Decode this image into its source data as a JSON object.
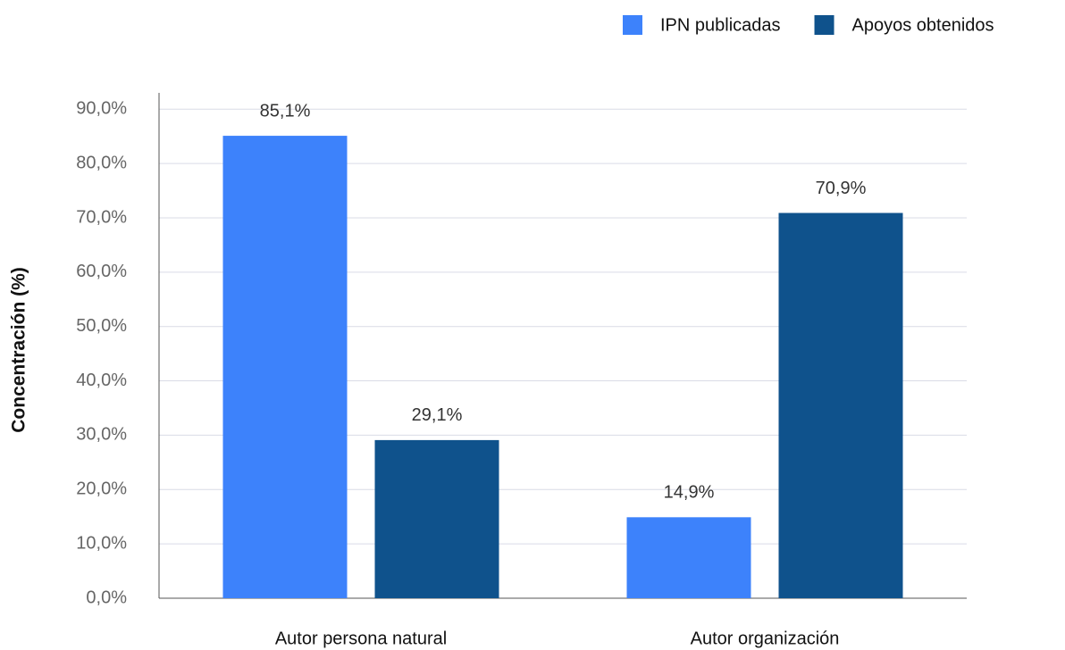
{
  "chart_data": {
    "type": "bar",
    "y_label": "Concentración (%)",
    "categories": [
      "Autor persona natural",
      "Autor organización"
    ],
    "series": [
      {
        "name": "IPN publicadas",
        "color": "#3d82fb",
        "values": [
          85.1,
          14.9
        ],
        "value_labels": [
          "85,1%",
          "14,9%"
        ]
      },
      {
        "name": "Apoyos obtenidos",
        "color": "#0f528c",
        "values": [
          29.1,
          70.9
        ],
        "value_labels": [
          "29,1%",
          "70,9%"
        ]
      }
    ],
    "ylim": [
      0,
      93
    ],
    "yticks": [
      {
        "value": 0,
        "label": "0,0%"
      },
      {
        "value": 10,
        "label": "10,0%"
      },
      {
        "value": 20,
        "label": "20,0%"
      },
      {
        "value": 30,
        "label": "30,0%"
      },
      {
        "value": 40,
        "label": "40,0%"
      },
      {
        "value": 50,
        "label": "50,0%"
      },
      {
        "value": 60,
        "label": "60,0%"
      },
      {
        "value": 70,
        "label": "70,0%"
      },
      {
        "value": 80,
        "label": "80,0%"
      },
      {
        "value": 90,
        "label": "90,0%"
      }
    ],
    "grid": true,
    "legend": "top-right"
  }
}
